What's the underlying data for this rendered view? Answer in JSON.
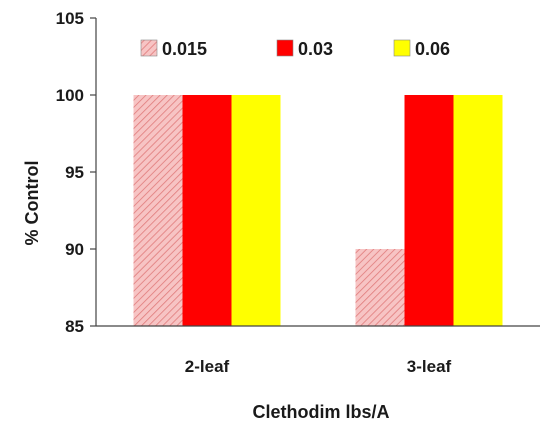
{
  "chart_data": {
    "type": "bar",
    "title": "",
    "xlabel": "Clethodim lbs/A",
    "ylabel": "% Control",
    "ylim": [
      85,
      105
    ],
    "yticks": [
      "85",
      "90",
      "95",
      "100",
      "105"
    ],
    "categories": [
      "2-leaf",
      "3-leaf"
    ],
    "series": [
      {
        "name": "0.015",
        "values": [
          100,
          90
        ],
        "color": "#f4a9a9",
        "pattern": "diagonal-hatch"
      },
      {
        "name": "0.03",
        "values": [
          100,
          100
        ],
        "color": "#ff0000"
      },
      {
        "name": "0.06",
        "values": [
          100,
          100
        ],
        "color": "#ffff00"
      }
    ],
    "grid": false,
    "legend_position": "top"
  }
}
